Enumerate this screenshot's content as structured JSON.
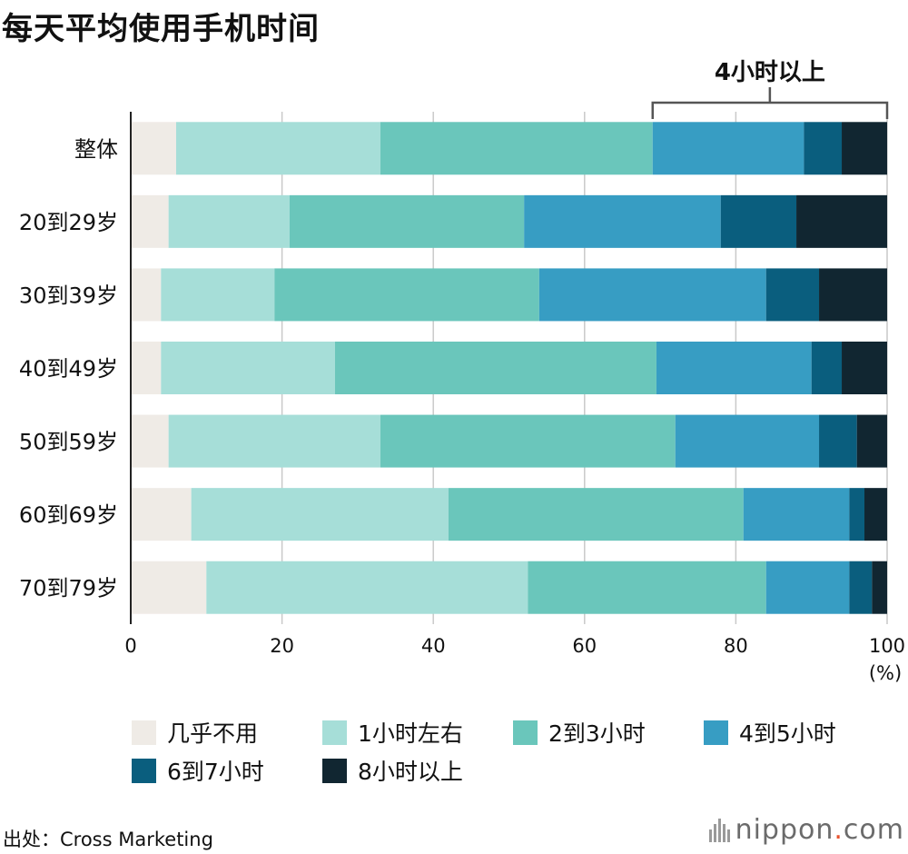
{
  "title": "每天平均使用手机时间",
  "source": "出处：Cross Marketing",
  "brand": {
    "name": "nippon",
    "dot": ".",
    "suffix": "com"
  },
  "chart_data": {
    "type": "bar",
    "orientation": "horizontal",
    "stacked": true,
    "title": "每天平均使用手机时间",
    "xlabel": "(%)",
    "xlim": [
      0,
      100
    ],
    "xticks": [
      0,
      20,
      40,
      60,
      80,
      100
    ],
    "grid": true,
    "legend_position": "bottom",
    "categories": [
      "整体",
      "20到29岁",
      "30到39岁",
      "40到49岁",
      "50到59岁",
      "60到69岁",
      "70到79岁"
    ],
    "series": [
      {
        "name": "几乎不用",
        "color": "#efebe6",
        "values": [
          6,
          5,
          4,
          4,
          5,
          8,
          10
        ]
      },
      {
        "name": "1小时左右",
        "color": "#a6ded8",
        "values": [
          27,
          16,
          15,
          23,
          28,
          34,
          42.5
        ]
      },
      {
        "name": "2到3小时",
        "color": "#6ac6bb",
        "values": [
          36,
          31,
          35,
          42.5,
          39,
          39,
          31.5
        ]
      },
      {
        "name": "4到5小时",
        "color": "#379dc3",
        "values": [
          20,
          26,
          30,
          20.5,
          19,
          14,
          11
        ]
      },
      {
        "name": "6到7小时",
        "color": "#0a5e7e",
        "values": [
          5,
          10,
          7,
          4,
          5,
          2,
          3
        ]
      },
      {
        "name": "8小时以上",
        "color": "#112631",
        "values": [
          6,
          12,
          9,
          6,
          4,
          3,
          2
        ]
      }
    ],
    "annotation": {
      "label": "4小时以上",
      "from": 69,
      "to": 100
    }
  }
}
